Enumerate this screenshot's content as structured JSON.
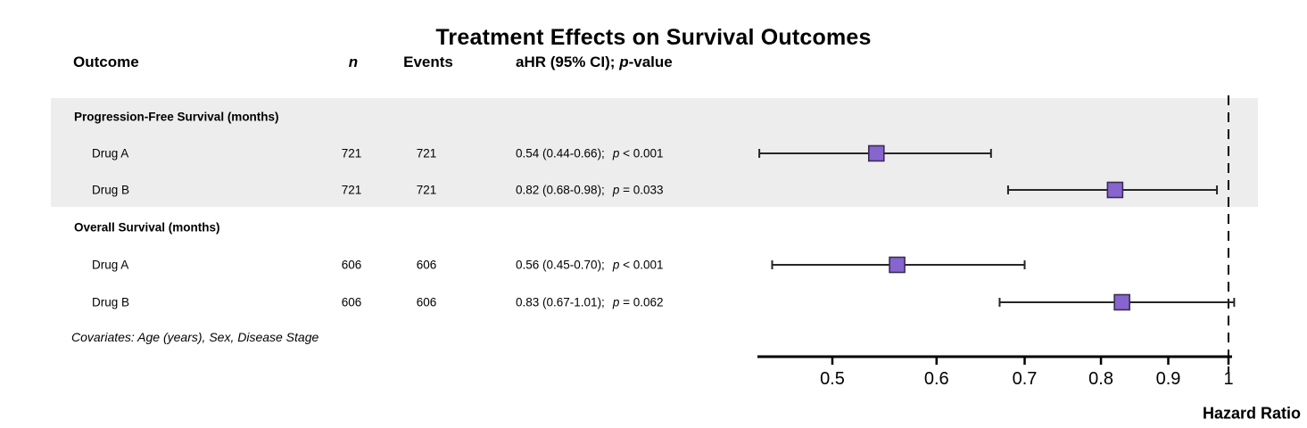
{
  "title": "Treatment Effects on Survival Outcomes",
  "columns": {
    "outcome": "Outcome",
    "n": "n",
    "events": "Events",
    "ahr_prefix": "aHR (95% CI); ",
    "ahr_p": "p",
    "ahr_suffix": "-value"
  },
  "footnote": "Covariates: Age (years), Sex, Disease Stage",
  "xlabel": "Hazard Ratio",
  "chart_data": {
    "type": "forest",
    "title": "Treatment Effects on Survival Outcomes",
    "xlabel": "Hazard Ratio",
    "x_scale": "log",
    "x_ticks": [
      0.5,
      0.6,
      0.7,
      0.8,
      0.9,
      1
    ],
    "x_tick_labels": [
      "0.5",
      "0.6",
      "0.7",
      "0.8",
      "0.9",
      "1"
    ],
    "reference_line": 1.0,
    "x_range": [
      0.43,
      1.02
    ],
    "colors": {
      "marker_fill": "#8765CE",
      "marker_border": "#3A2D52",
      "band": "#EDEDED",
      "line": "#262626",
      "axis": "#000000"
    },
    "groups": [
      {
        "label": "Progression-Free Survival (months)",
        "shaded": true,
        "rows": [
          {
            "label": "Drug A",
            "n": "721",
            "events": "721",
            "estimate_text": "0.54 (0.44-0.66);",
            "p_italic": "p",
            "p_rest": " < 0.001",
            "hr": 0.54,
            "lo": 0.44,
            "hi": 0.66
          },
          {
            "label": "Drug B",
            "n": "721",
            "events": "721",
            "estimate_text": "0.82 (0.68-0.98);",
            "p_italic": "p",
            "p_rest": " = 0.033",
            "hr": 0.82,
            "lo": 0.68,
            "hi": 0.98
          }
        ]
      },
      {
        "label": "Overall Survival (months)",
        "shaded": false,
        "rows": [
          {
            "label": "Drug A",
            "n": "606",
            "events": "606",
            "estimate_text": "0.56 (0.45-0.70);",
            "p_italic": "p",
            "p_rest": " < 0.001",
            "hr": 0.56,
            "lo": 0.45,
            "hi": 0.7
          },
          {
            "label": "Drug B",
            "n": "606",
            "events": "606",
            "estimate_text": "0.83 (0.67-1.01);",
            "p_italic": "p",
            "p_rest": " = 0.062",
            "hr": 0.83,
            "lo": 0.67,
            "hi": 1.01
          }
        ]
      }
    ]
  }
}
